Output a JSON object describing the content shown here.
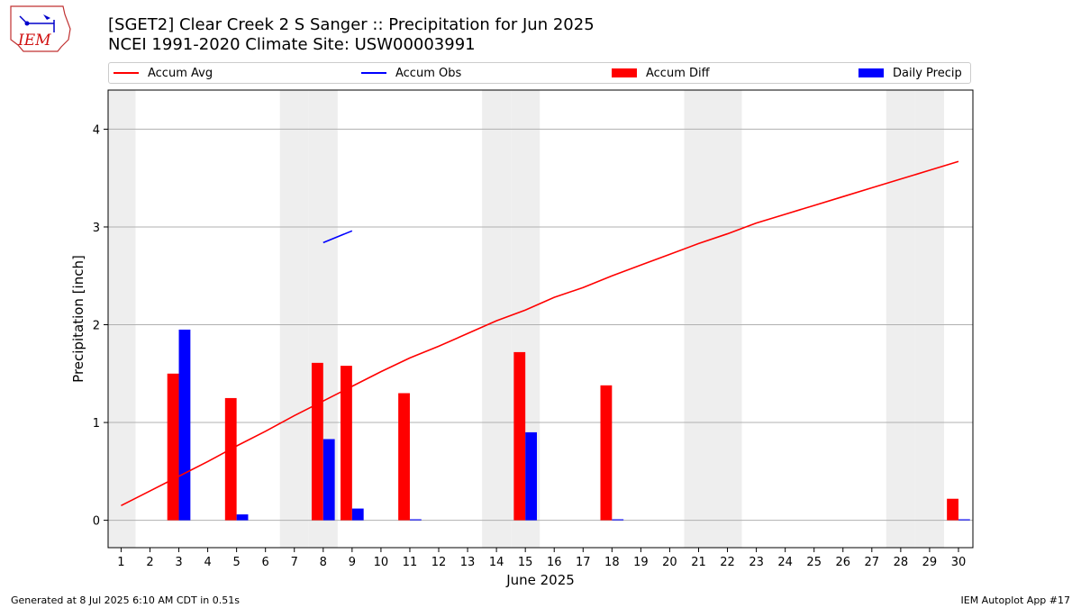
{
  "header": {
    "logo_text": "IEM",
    "title_line1": "[SGET2] Clear Creek 2 S Sanger :: Precipitation for Jun 2025",
    "title_line2": "NCEI 1991-2020 Climate Site: USW00003991"
  },
  "footer": {
    "left": "Generated at 8 Jul 2025 6:10 AM CDT in 0.51s",
    "right": "IEM Autoplot App #17"
  },
  "colors": {
    "accum_avg": "#ff0000",
    "accum_obs": "#0000ff",
    "accum_diff": "#ff0000",
    "daily_precip": "#0000ff",
    "weekend_shade": "#eeeeee",
    "grid": "#b0b0b0"
  },
  "chart_data": {
    "type": "bar",
    "title": "[SGET2] Clear Creek 2 S Sanger :: Precipitation for Jun 2025",
    "subtitle": "NCEI 1991-2020 Climate Site: USW00003991",
    "xlabel": "June 2025",
    "ylabel": "Precipitation [inch]",
    "x": [
      1,
      2,
      3,
      4,
      5,
      6,
      7,
      8,
      9,
      10,
      11,
      12,
      13,
      14,
      15,
      16,
      17,
      18,
      19,
      20,
      21,
      22,
      23,
      24,
      25,
      26,
      27,
      28,
      29,
      30
    ],
    "xlim": [
      0.55,
      30.5
    ],
    "ylim": [
      -0.28,
      4.4
    ],
    "yticks": [
      0,
      1,
      2,
      3,
      4
    ],
    "grid": "horizontal",
    "legend_position": "top",
    "weekend_days": [
      1,
      7,
      8,
      14,
      15,
      21,
      22,
      28,
      29
    ],
    "series": [
      {
        "name": "Accum Avg",
        "kind": "line",
        "values": [
          0.15,
          0.3,
          0.45,
          0.6,
          0.76,
          0.91,
          1.07,
          1.22,
          1.37,
          1.52,
          1.66,
          1.78,
          1.91,
          2.04,
          2.15,
          2.28,
          2.38,
          2.5,
          2.61,
          2.72,
          2.83,
          2.93,
          3.04,
          3.13,
          3.22,
          3.31,
          3.4,
          3.49,
          3.58,
          3.67
        ]
      },
      {
        "name": "Accum Obs",
        "kind": "line",
        "values": [
          null,
          null,
          null,
          null,
          null,
          null,
          null,
          2.84,
          2.96,
          null,
          null,
          null,
          null,
          null,
          null,
          null,
          null,
          null,
          null,
          null,
          null,
          null,
          null,
          null,
          null,
          null,
          null,
          null,
          null,
          null
        ]
      },
      {
        "name": "Accum Diff",
        "kind": "bar",
        "values": [
          null,
          null,
          1.5,
          null,
          1.25,
          null,
          null,
          1.61,
          1.58,
          null,
          1.3,
          null,
          null,
          null,
          1.72,
          null,
          null,
          1.38,
          null,
          null,
          null,
          null,
          null,
          null,
          null,
          null,
          null,
          null,
          null,
          0.22
        ]
      },
      {
        "name": "Daily Precip",
        "kind": "bar",
        "values": [
          null,
          null,
          1.95,
          null,
          0.06,
          null,
          null,
          0.83,
          0.12,
          null,
          0.01,
          null,
          null,
          null,
          0.9,
          null,
          null,
          0.01,
          null,
          null,
          null,
          null,
          null,
          null,
          null,
          null,
          null,
          null,
          null,
          0.01
        ]
      }
    ]
  }
}
